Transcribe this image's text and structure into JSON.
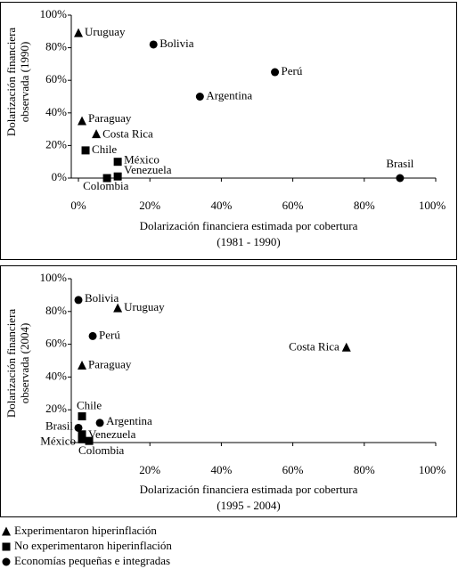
{
  "chart_data": [
    {
      "type": "scatter",
      "ylabel": [
        "Dolarización financiera",
        "observada (1990)"
      ],
      "xlabel": [
        "Dolarización financiera estimada por cobertura",
        "(1981 - 1990)"
      ],
      "xlim": [
        -2,
        100
      ],
      "ylim": [
        0,
        100
      ],
      "xticks": [
        {
          "value": 0,
          "label": "0%"
        },
        {
          "value": 20,
          "label": "20%"
        },
        {
          "value": 40,
          "label": "40%"
        },
        {
          "value": 60,
          "label": "60%"
        },
        {
          "value": 80,
          "label": "80%"
        },
        {
          "value": 100,
          "label": "100%"
        }
      ],
      "yticks": [
        {
          "value": 0,
          "label": "0%"
        },
        {
          "value": 20,
          "label": "20%"
        },
        {
          "value": 40,
          "label": "40%"
        },
        {
          "value": 60,
          "label": "60%"
        },
        {
          "value": 80,
          "label": "80%"
        },
        {
          "value": 100,
          "label": "100%"
        }
      ],
      "series": [
        {
          "name": "Experimentaron hiperinflación",
          "marker": "triangle",
          "color": "#000000",
          "labels": [
            "Uruguay",
            "Paraguay",
            "Costa Rica"
          ],
          "x": [
            0,
            1,
            5
          ],
          "values": [
            89,
            35,
            27
          ]
        },
        {
          "name": "No experimentaron hiperinflación",
          "marker": "square",
          "color": "#000000",
          "labels": [
            "Chile",
            "México",
            "Venezuela",
            "Colombia"
          ],
          "x": [
            2,
            11,
            11,
            8
          ],
          "values": [
            17,
            10,
            1,
            0
          ]
        },
        {
          "name": "Economías pequeñas e integradas",
          "marker": "circle",
          "color": "#000000",
          "labels": [
            "Bolivia",
            "Perú",
            "Argentina",
            "Brasil"
          ],
          "x": [
            21,
            55,
            34,
            90
          ],
          "values": [
            82,
            65,
            50,
            0
          ]
        }
      ]
    },
    {
      "type": "scatter",
      "ylabel": [
        "Dolarización financiera",
        "observada (2004)"
      ],
      "xlabel": [
        "Dolarización financiera estimada por cobertura",
        "(1995 - 2004)"
      ],
      "xlim": [
        -2,
        100
      ],
      "ylim": [
        0,
        100
      ],
      "xticks": [
        {
          "value": 20,
          "label": "20%"
        },
        {
          "value": 40,
          "label": "40%"
        },
        {
          "value": 60,
          "label": "60%"
        },
        {
          "value": 80,
          "label": "80%"
        },
        {
          "value": 100,
          "label": "100%"
        }
      ],
      "yticks": [
        {
          "value": 20,
          "label": "20%"
        },
        {
          "value": 40,
          "label": "40%"
        },
        {
          "value": 60,
          "label": "60%"
        },
        {
          "value": 80,
          "label": "80%"
        },
        {
          "value": 100,
          "label": "100%"
        }
      ],
      "series": [
        {
          "name": "Experimentaron hiperinflación",
          "marker": "triangle",
          "color": "#000000",
          "labels": [
            "Uruguay",
            "Costa Rica",
            "Paraguay"
          ],
          "x": [
            11,
            75,
            1
          ],
          "values": [
            82,
            58,
            47
          ]
        },
        {
          "name": "No experimentaron hiperinflación",
          "marker": "square",
          "color": "#000000",
          "labels": [
            "Chile",
            "Venezuela",
            "México",
            "Colombia"
          ],
          "x": [
            1,
            1,
            1,
            3
          ],
          "values": [
            16,
            5,
            2,
            1
          ]
        },
        {
          "name": "Economías pequeñas e integradas",
          "marker": "circle",
          "color": "#000000",
          "labels": [
            "Bolivia",
            "Perú",
            "Argentina",
            "Brasil"
          ],
          "x": [
            0,
            4,
            6,
            0
          ],
          "values": [
            87,
            65,
            12,
            9
          ]
        }
      ]
    }
  ]
}
